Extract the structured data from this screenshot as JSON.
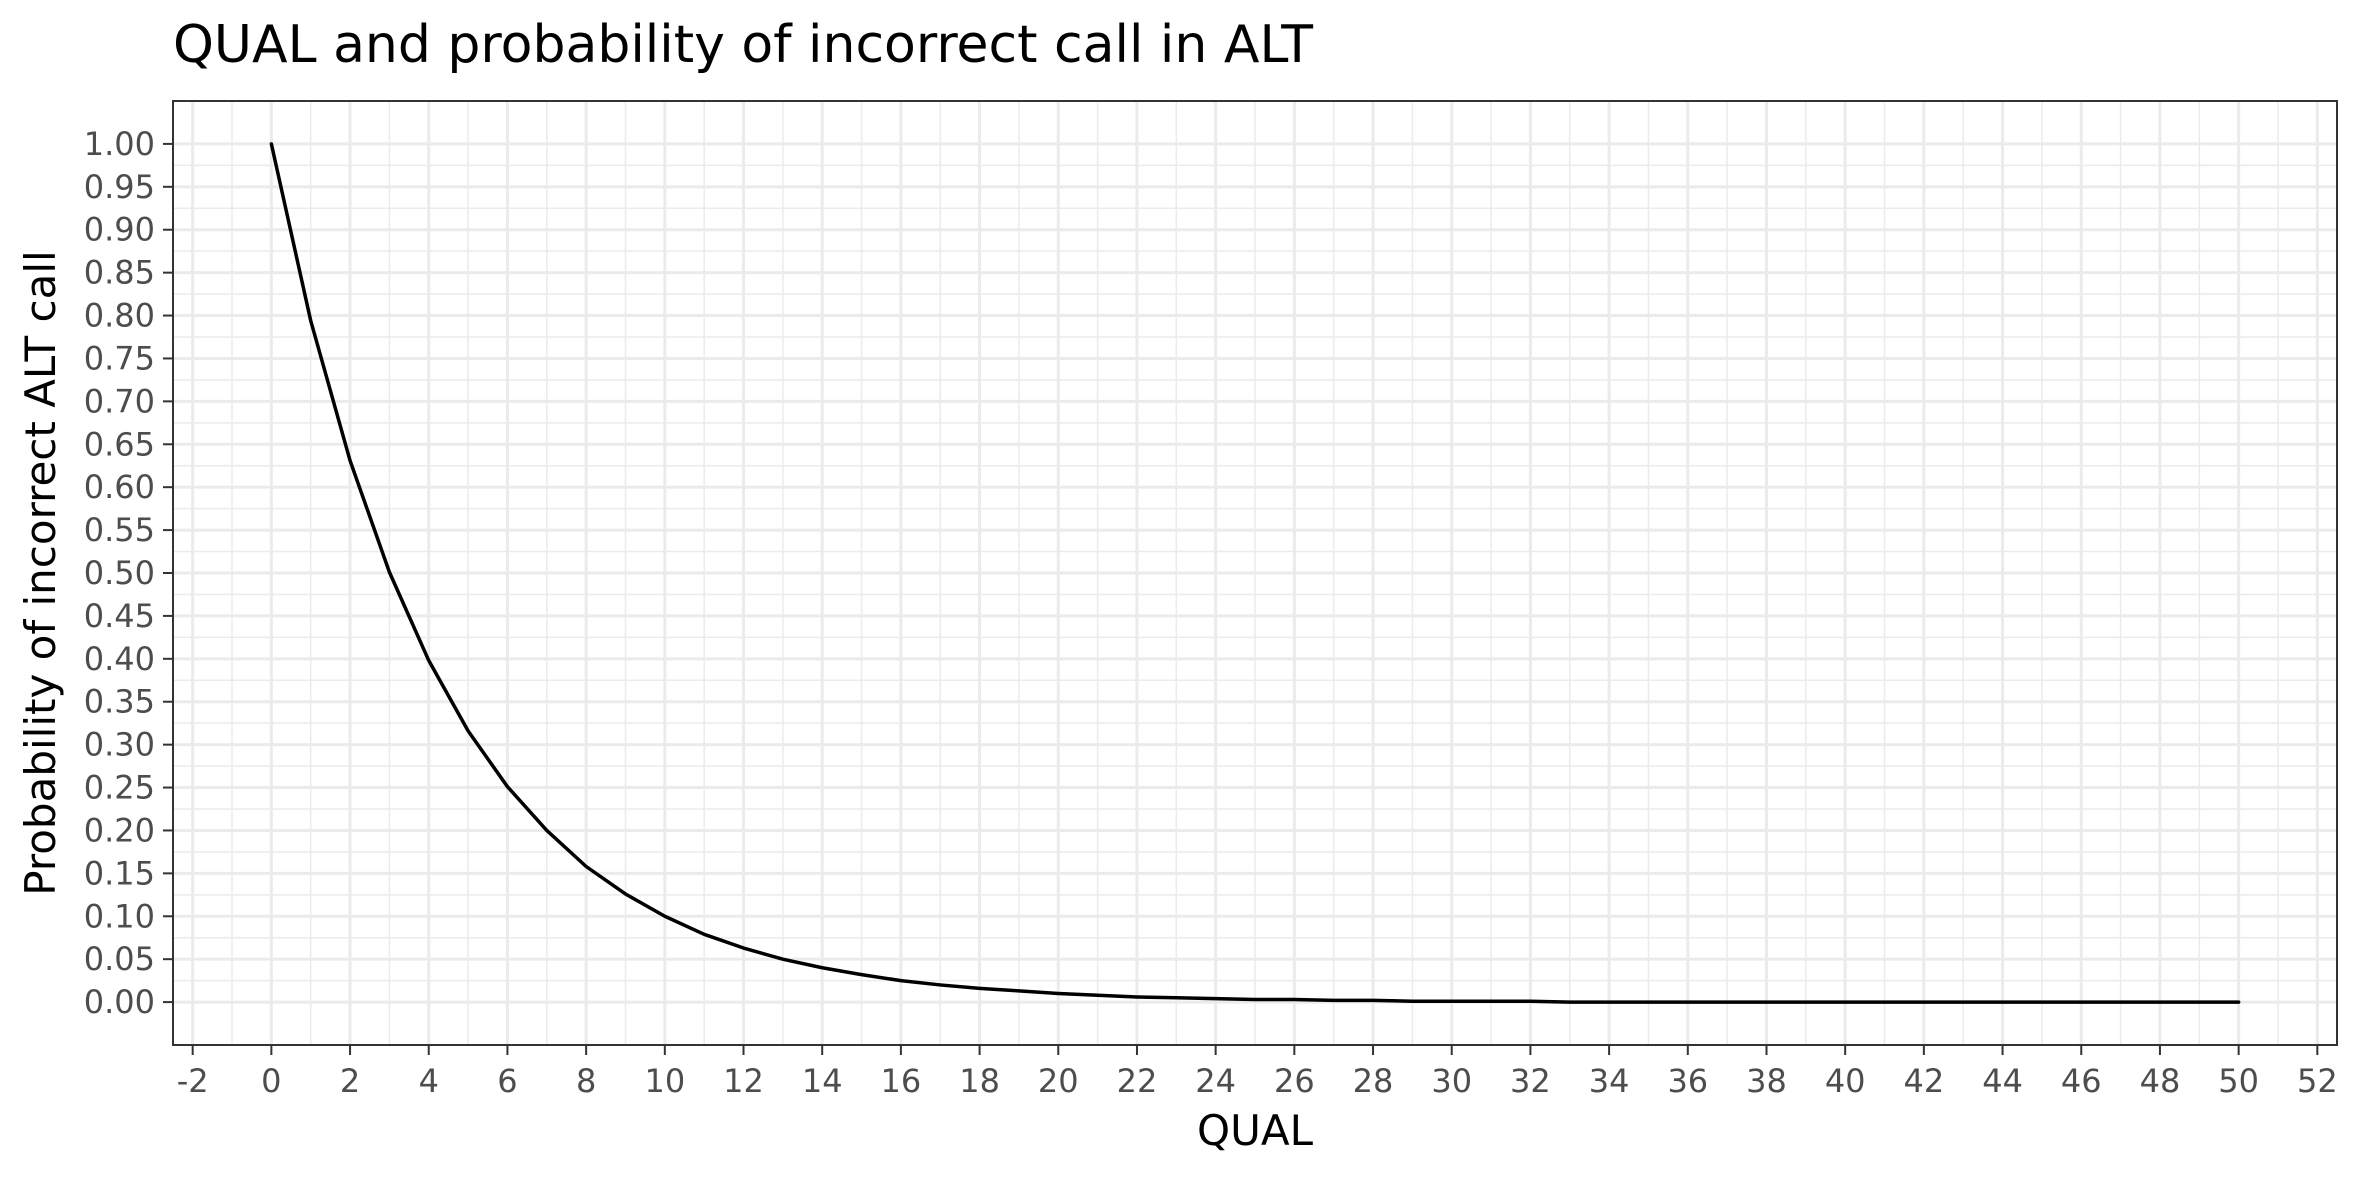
{
  "chart_data": {
    "type": "line",
    "title": "QUAL and probability of incorrect call in ALT",
    "xlabel": "QUAL",
    "ylabel": "Probability of incorrect ALT call",
    "xlim": [
      -2.5,
      52.5
    ],
    "ylim": [
      -0.05,
      1.05
    ],
    "x_ticks": [
      -2,
      0,
      2,
      4,
      6,
      8,
      10,
      12,
      14,
      16,
      18,
      20,
      22,
      24,
      26,
      28,
      30,
      32,
      34,
      36,
      38,
      40,
      42,
      44,
      46,
      48,
      50,
      52
    ],
    "x_tick_labels": [
      "-2",
      "0",
      "2",
      "4",
      "6",
      "8",
      "10",
      "12",
      "14",
      "16",
      "18",
      "20",
      "22",
      "24",
      "26",
      "28",
      "30",
      "32",
      "34",
      "36",
      "38",
      "40",
      "42",
      "44",
      "46",
      "48",
      "50",
      "52"
    ],
    "y_ticks": [
      0,
      0.05,
      0.1,
      0.15,
      0.2,
      0.25,
      0.3,
      0.35,
      0.4,
      0.45,
      0.5,
      0.55,
      0.6,
      0.65,
      0.7,
      0.75,
      0.8,
      0.85,
      0.9,
      0.95,
      1.0
    ],
    "y_tick_labels": [
      "0.00",
      "0.05",
      "0.10",
      "0.15",
      "0.20",
      "0.25",
      "0.30",
      "0.35",
      "0.40",
      "0.45",
      "0.50",
      "0.55",
      "0.60",
      "0.65",
      "0.70",
      "0.75",
      "0.80",
      "0.85",
      "0.90",
      "0.95",
      "1.00"
    ],
    "grid": true,
    "legend": "none",
    "series": [
      {
        "color": "#000000",
        "x": [
          0,
          1,
          2,
          3,
          4,
          5,
          6,
          7,
          8,
          9,
          10,
          11,
          12,
          13,
          14,
          15,
          16,
          17,
          18,
          19,
          20,
          21,
          22,
          23,
          24,
          25,
          26,
          27,
          28,
          29,
          30,
          31,
          32,
          33,
          34,
          35,
          36,
          37,
          38,
          39,
          40,
          41,
          42,
          43,
          44,
          45,
          46,
          47,
          48,
          49,
          50
        ],
        "y": [
          1.0,
          0.794,
          0.631,
          0.501,
          0.398,
          0.316,
          0.251,
          0.2,
          0.158,
          0.126,
          0.1,
          0.079,
          0.063,
          0.05,
          0.04,
          0.032,
          0.025,
          0.02,
          0.016,
          0.013,
          0.01,
          0.008,
          0.006,
          0.005,
          0.004,
          0.003,
          0.003,
          0.002,
          0.002,
          0.001,
          0.001,
          0.001,
          0.001,
          0.0,
          0.0,
          0.0,
          0.0,
          0.0,
          0.0,
          0.0,
          0.0,
          0.0,
          0.0,
          0.0,
          0.0,
          0.0,
          0.0,
          0.0,
          0.0,
          0.0,
          0.0
        ]
      }
    ]
  }
}
